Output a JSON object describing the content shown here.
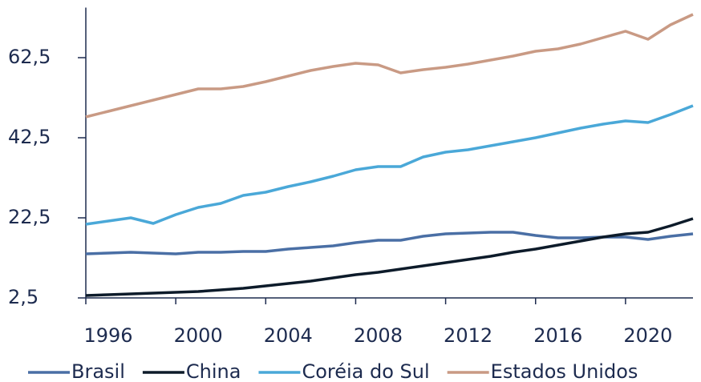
{
  "chart_data": {
    "type": "line",
    "categories": [
      "1996",
      null,
      null,
      null,
      "2000",
      null,
      null,
      null,
      "2004",
      null,
      null,
      null,
      "2008",
      null,
      null,
      null,
      "2012",
      null,
      null,
      null,
      "2016",
      null,
      null,
      null,
      "2020",
      null,
      null,
      null
    ],
    "ylim": [
      2.5,
      75
    ],
    "yticks": [
      {
        "value": 2.5,
        "label": "2,5"
      },
      {
        "value": 22.5,
        "label": "22,5"
      },
      {
        "value": 42.5,
        "label": "42,5"
      },
      {
        "value": 62.5,
        "label": "62,5"
      }
    ],
    "series": [
      {
        "name": "Brasil",
        "color": "#4a6fa5",
        "values": [
          13.5,
          13.7,
          13.9,
          13.7,
          13.5,
          13.9,
          13.9,
          14.1,
          14.1,
          14.7,
          15.1,
          15.5,
          16.3,
          16.9,
          16.9,
          17.9,
          18.5,
          18.7,
          18.9,
          18.9,
          18.1,
          17.5,
          17.5,
          17.7,
          17.7,
          17.1,
          17.9,
          18.5
        ]
      },
      {
        "name": "China",
        "color": "#0d1b2a",
        "values": [
          3.1,
          3.3,
          3.5,
          3.7,
          3.9,
          4.1,
          4.5,
          4.9,
          5.5,
          6.1,
          6.7,
          7.5,
          8.3,
          8.9,
          9.7,
          10.5,
          11.3,
          12.1,
          12.9,
          13.9,
          14.7,
          15.7,
          16.7,
          17.7,
          18.5,
          18.9,
          20.5,
          22.3
        ]
      },
      {
        "name": "Coréia do Sul",
        "color": "#4aa8d8",
        "values": [
          20.9,
          21.7,
          22.5,
          21.1,
          23.3,
          25.1,
          26.1,
          28.1,
          28.9,
          30.3,
          31.5,
          32.9,
          34.5,
          35.3,
          35.3,
          37.7,
          38.9,
          39.5,
          40.5,
          41.5,
          42.5,
          43.7,
          44.9,
          45.9,
          46.7,
          46.3,
          48.3,
          50.5
        ]
      },
      {
        "name": "Estados Unidos",
        "color": "#c99a84",
        "values": [
          47.7,
          49.1,
          50.5,
          51.9,
          53.3,
          54.7,
          54.7,
          55.3,
          56.5,
          57.9,
          59.3,
          60.3,
          61.1,
          60.7,
          58.7,
          59.5,
          60.1,
          60.9,
          61.9,
          62.9,
          64.1,
          64.7,
          65.9,
          67.5,
          69.1,
          67.1,
          70.7,
          73.3
        ]
      }
    ]
  }
}
